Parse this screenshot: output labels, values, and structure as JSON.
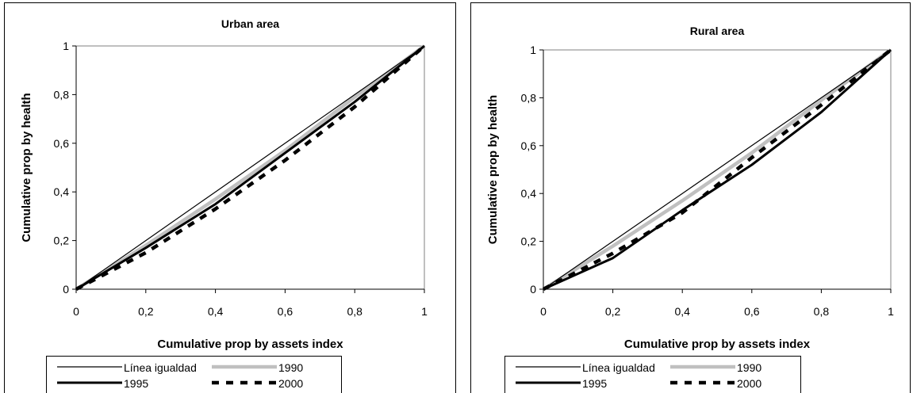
{
  "chart_data": [
    {
      "type": "line",
      "title": "Urban area",
      "xlabel": "Cumulative prop by assets index",
      "ylabel": "Cumulative prop by health",
      "xlim": [
        0,
        1
      ],
      "ylim": [
        0,
        1
      ],
      "x_ticks": [
        "0",
        "0,2",
        "0,4",
        "0,6",
        "0,8",
        "1"
      ],
      "y_ticks": [
        "0",
        "0,2",
        "0,4",
        "0,6",
        "0,8",
        "1"
      ],
      "grid": false,
      "legend_position": "bottom",
      "series": [
        {
          "name": "Línea igualdad",
          "style": "thin",
          "color": "#000000",
          "x": [
            0,
            0.2,
            0.4,
            0.6,
            0.8,
            1
          ],
          "y": [
            0,
            0.2,
            0.4,
            0.6,
            0.8,
            1
          ]
        },
        {
          "name": "1990",
          "style": "gray",
          "color": "#c0c0c0",
          "x": [
            0,
            0.2,
            0.4,
            0.6,
            0.8,
            1
          ],
          "y": [
            0,
            0.18,
            0.37,
            0.57,
            0.79,
            1
          ]
        },
        {
          "name": "1995",
          "style": "thick",
          "color": "#000000",
          "x": [
            0,
            0.2,
            0.4,
            0.6,
            0.8,
            1
          ],
          "y": [
            0,
            0.17,
            0.35,
            0.56,
            0.77,
            1
          ]
        },
        {
          "name": "2000",
          "style": "dashed",
          "color": "#000000",
          "x": [
            0,
            0.2,
            0.4,
            0.6,
            0.8,
            1
          ],
          "y": [
            0,
            0.15,
            0.33,
            0.53,
            0.75,
            1
          ]
        }
      ]
    },
    {
      "type": "line",
      "title": "Rural area",
      "xlabel": "Cumulative prop by assets index",
      "ylabel": "Cumulative prop by health",
      "xlim": [
        0,
        1
      ],
      "ylim": [
        0,
        1
      ],
      "x_ticks": [
        "0",
        "0,2",
        "0,4",
        "0,6",
        "0,8",
        "1"
      ],
      "y_ticks": [
        "0",
        "0,2",
        "0,4",
        "0,6",
        "0,8",
        "1"
      ],
      "grid": false,
      "legend_position": "bottom",
      "series": [
        {
          "name": "Línea igualdad",
          "style": "thin",
          "color": "#000000",
          "x": [
            0,
            0.2,
            0.4,
            0.6,
            0.8,
            1
          ],
          "y": [
            0,
            0.2,
            0.4,
            0.6,
            0.8,
            1
          ]
        },
        {
          "name": "1990",
          "style": "gray",
          "color": "#c0c0c0",
          "x": [
            0,
            0.2,
            0.4,
            0.6,
            0.8,
            1
          ],
          "y": [
            0,
            0.18,
            0.37,
            0.57,
            0.79,
            1
          ]
        },
        {
          "name": "1995",
          "style": "thick",
          "color": "#000000",
          "x": [
            0,
            0.2,
            0.4,
            0.6,
            0.8,
            1
          ],
          "y": [
            0,
            0.13,
            0.33,
            0.52,
            0.74,
            1
          ]
        },
        {
          "name": "2000",
          "style": "dashed",
          "color": "#000000",
          "x": [
            0,
            0.2,
            0.4,
            0.6,
            0.8,
            1
          ],
          "y": [
            0,
            0.15,
            0.32,
            0.55,
            0.77,
            1
          ]
        }
      ]
    }
  ]
}
